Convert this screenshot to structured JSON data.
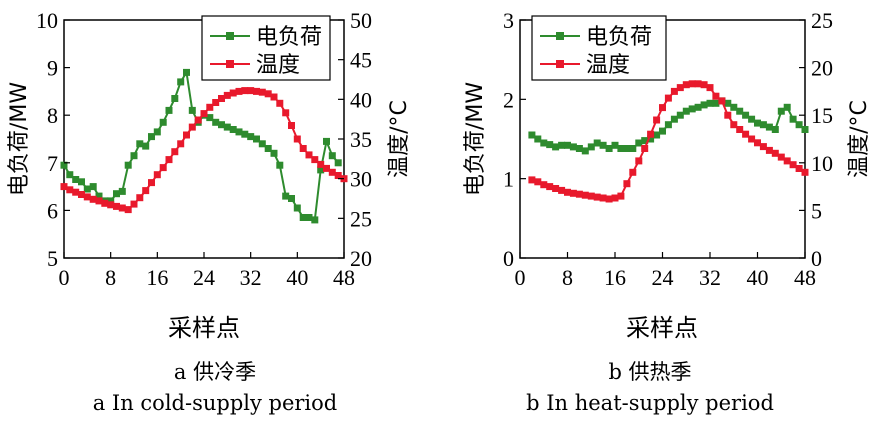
{
  "colors": {
    "load": "#2e8b2e",
    "temp": "#e8192c",
    "axis": "#000000"
  },
  "chart_data": [
    {
      "type": "line",
      "xlabel": "采样点",
      "ylabel_left": "电负荷/MW",
      "ylabel_right": "温度/°C",
      "xlim": [
        0,
        48
      ],
      "ylim_left": [
        5,
        10
      ],
      "ylim_right": [
        20,
        50
      ],
      "xticks": [
        "0",
        "8",
        "16",
        "24",
        "32",
        "40",
        "48"
      ],
      "yticks_left": [
        "5",
        "6",
        "7",
        "8",
        "9",
        "10"
      ],
      "yticks_right": [
        "20",
        "25",
        "30",
        "35",
        "40",
        "45",
        "50"
      ],
      "legend": {
        "position": "top-right",
        "entries": [
          "电负荷",
          "温度"
        ]
      },
      "caption_zh": "a  供冷季",
      "caption_en": "a  In cold-supply period",
      "series": [
        {
          "name": "电负荷",
          "axis": "left",
          "marker": "square",
          "x": [
            0,
            1,
            2,
            3,
            4,
            5,
            6,
            7,
            8,
            9,
            10,
            11,
            12,
            13,
            14,
            15,
            16,
            17,
            18,
            19,
            20,
            21,
            22,
            23,
            24,
            25,
            26,
            27,
            28,
            29,
            30,
            31,
            32,
            33,
            34,
            35,
            36,
            37,
            38,
            39,
            40,
            41,
            42,
            43,
            44,
            45,
            46,
            47
          ],
          "values": [
            6.95,
            6.75,
            6.65,
            6.6,
            6.45,
            6.5,
            6.3,
            6.2,
            6.2,
            6.35,
            6.4,
            6.95,
            7.15,
            7.4,
            7.35,
            7.55,
            7.65,
            7.85,
            8.1,
            8.35,
            8.7,
            8.9,
            8.1,
            7.85,
            8.0,
            7.95,
            7.85,
            7.8,
            7.75,
            7.7,
            7.65,
            7.6,
            7.55,
            7.5,
            7.4,
            7.3,
            7.2,
            6.95,
            6.3,
            6.25,
            6.05,
            5.85,
            5.85,
            5.8,
            6.85,
            7.45,
            7.15,
            7.0
          ]
        },
        {
          "name": "温度",
          "axis": "right",
          "marker": "square",
          "x": [
            0,
            1,
            2,
            3,
            4,
            5,
            6,
            7,
            8,
            9,
            10,
            11,
            12,
            13,
            14,
            15,
            16,
            17,
            18,
            19,
            20,
            21,
            22,
            23,
            24,
            25,
            26,
            27,
            28,
            29,
            30,
            31,
            32,
            33,
            34,
            35,
            36,
            37,
            38,
            39,
            40,
            41,
            42,
            43,
            44,
            45,
            46,
            47,
            48
          ],
          "values": [
            29.0,
            28.6,
            28.3,
            28.0,
            27.7,
            27.4,
            27.2,
            26.9,
            26.7,
            26.5,
            26.3,
            26.1,
            26.8,
            27.6,
            28.5,
            29.5,
            30.5,
            31.4,
            32.4,
            33.4,
            34.4,
            35.5,
            36.5,
            37.4,
            38.2,
            39.0,
            39.6,
            40.1,
            40.5,
            40.8,
            41.0,
            41.1,
            41.1,
            41.0,
            40.9,
            40.7,
            40.3,
            39.5,
            38.3,
            36.7,
            35.0,
            33.8,
            33.0,
            32.4,
            31.8,
            31.3,
            30.8,
            30.4,
            30.0
          ]
        }
      ]
    },
    {
      "type": "line",
      "xlabel": "采样点",
      "ylabel_left": "电负荷/MW",
      "ylabel_right": "温度/°C",
      "xlim": [
        0,
        48
      ],
      "ylim_left": [
        0,
        3
      ],
      "ylim_right": [
        0,
        25
      ],
      "xticks": [
        "0",
        "8",
        "16",
        "24",
        "32",
        "40",
        "48"
      ],
      "yticks_left": [
        "0",
        "1",
        "2",
        "3"
      ],
      "yticks_right": [
        "0",
        "5",
        "10",
        "15",
        "20",
        "25"
      ],
      "legend": {
        "position": "top-left",
        "entries": [
          "电负荷",
          "温度"
        ]
      },
      "caption_zh": "b  供热季",
      "caption_en": "b  In heat-supply period",
      "series": [
        {
          "name": "电负荷",
          "axis": "left",
          "marker": "square",
          "x": [
            2,
            3,
            4,
            5,
            6,
            7,
            8,
            9,
            10,
            11,
            12,
            13,
            14,
            15,
            16,
            17,
            18,
            19,
            20,
            21,
            22,
            23,
            24,
            25,
            26,
            27,
            28,
            29,
            30,
            31,
            32,
            33,
            34,
            35,
            36,
            37,
            38,
            39,
            40,
            41,
            42,
            43,
            44,
            45,
            46,
            47,
            48
          ],
          "values": [
            1.55,
            1.5,
            1.45,
            1.43,
            1.4,
            1.42,
            1.42,
            1.4,
            1.38,
            1.35,
            1.4,
            1.45,
            1.42,
            1.38,
            1.42,
            1.38,
            1.38,
            1.38,
            1.45,
            1.48,
            1.5,
            1.55,
            1.6,
            1.68,
            1.75,
            1.8,
            1.85,
            1.88,
            1.9,
            1.93,
            1.95,
            1.95,
            1.98,
            1.95,
            1.9,
            1.85,
            1.8,
            1.75,
            1.7,
            1.68,
            1.65,
            1.62,
            1.85,
            1.9,
            1.75,
            1.68,
            1.62
          ]
        },
        {
          "name": "温度",
          "axis": "right",
          "marker": "square",
          "x": [
            2,
            3,
            4,
            5,
            6,
            7,
            8,
            9,
            10,
            11,
            12,
            13,
            14,
            15,
            16,
            17,
            18,
            19,
            20,
            21,
            22,
            23,
            24,
            25,
            26,
            27,
            28,
            29,
            30,
            31,
            32,
            33,
            34,
            35,
            36,
            37,
            38,
            39,
            40,
            41,
            42,
            43,
            44,
            45,
            46,
            47,
            48
          ],
          "values": [
            8.2,
            8.0,
            7.7,
            7.5,
            7.3,
            7.1,
            6.9,
            6.8,
            6.7,
            6.6,
            6.5,
            6.4,
            6.3,
            6.2,
            6.3,
            6.5,
            7.8,
            9.0,
            10.2,
            11.5,
            13.0,
            14.5,
            15.8,
            16.8,
            17.5,
            17.9,
            18.2,
            18.3,
            18.3,
            18.2,
            17.9,
            17.0,
            16.5,
            15.0,
            14.0,
            13.5,
            13.0,
            12.5,
            12.1,
            11.7,
            11.3,
            11.0,
            10.6,
            10.2,
            9.8,
            9.4,
            9.0
          ]
        }
      ]
    }
  ]
}
